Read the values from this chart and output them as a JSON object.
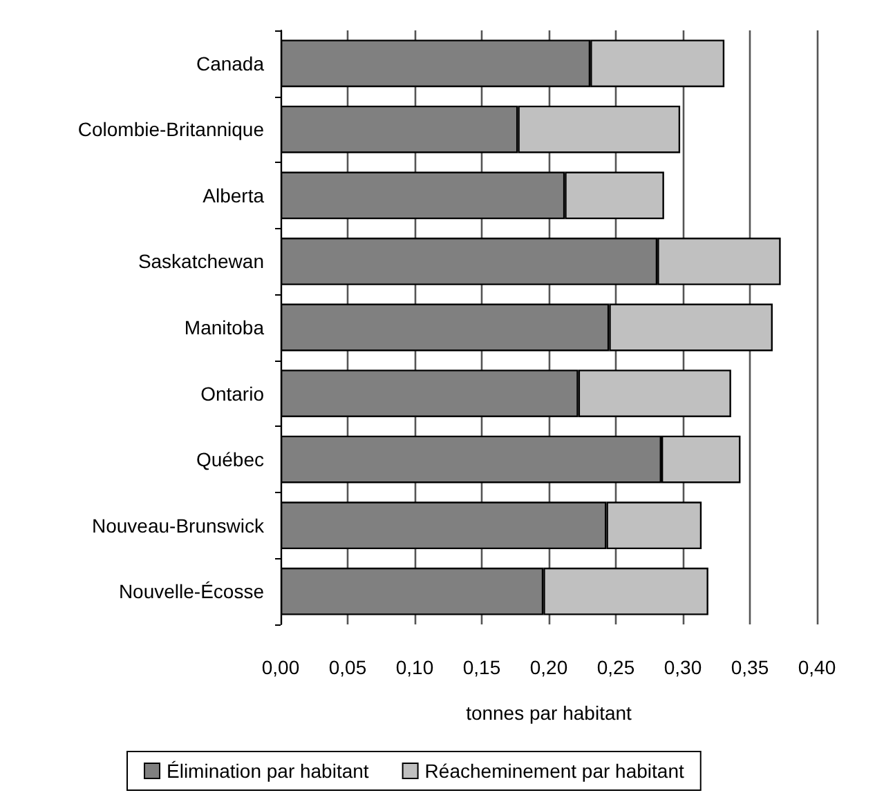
{
  "chart_data": {
    "type": "bar",
    "orientation": "horizontal",
    "stacked": true,
    "xlabel": "tonnes par habitant",
    "categories": [
      "Canada",
      "Colombie-Britannique",
      "Alberta",
      "Saskatchewan",
      "Manitoba",
      "Ontario",
      "Québec",
      "Nouveau-Brunswick",
      "Nouvelle-Écosse"
    ],
    "series": [
      {
        "name": "Élimination par habitant",
        "color": "#808080",
        "values": [
          0.231,
          0.177,
          0.212,
          0.281,
          0.245,
          0.222,
          0.284,
          0.243,
          0.196
        ]
      },
      {
        "name": "Réacheminement par habitant",
        "color": "#c0c0c0",
        "values": [
          0.1,
          0.121,
          0.074,
          0.092,
          0.122,
          0.114,
          0.059,
          0.071,
          0.123
        ]
      }
    ],
    "xlim": [
      0,
      0.4
    ],
    "xticks": [
      {
        "value": 0,
        "label": "0,00"
      },
      {
        "value": 0.05,
        "label": "0,05"
      },
      {
        "value": 0.1,
        "label": "0,10"
      },
      {
        "value": 0.15,
        "label": "0,15"
      },
      {
        "value": 0.2,
        "label": "0,20"
      },
      {
        "value": 0.25,
        "label": "0,25"
      },
      {
        "value": 0.3,
        "label": "0,30"
      },
      {
        "value": 0.35,
        "label": "0,35"
      },
      {
        "value": 0.4,
        "label": "0,40"
      }
    ],
    "grid": "x",
    "legend": "bottom"
  }
}
